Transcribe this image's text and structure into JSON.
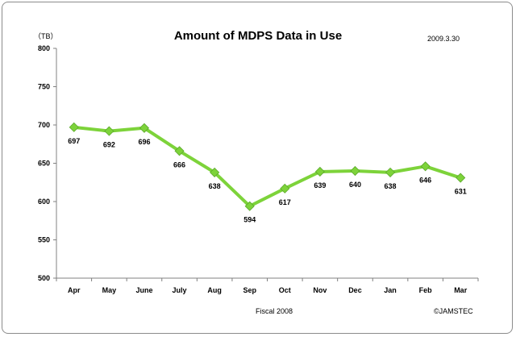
{
  "chart_data": {
    "type": "line",
    "title": "Amount of MDPS Data in Use",
    "ylabel": "（TB）",
    "xlabel": "Fiscal 2008",
    "date_note": "2009.3.30",
    "credit": "©JAMSTEC",
    "categories": [
      "Apr",
      "May",
      "June",
      "July",
      "Aug",
      "Sep",
      "Oct",
      "Nov",
      "Dec",
      "Jan",
      "Feb",
      "Mar"
    ],
    "series": [
      {
        "values": [
          697,
          692,
          696,
          666,
          638,
          594,
          617,
          639,
          640,
          638,
          646,
          631
        ],
        "color": "#7dd33a",
        "marker_color": "#7dd33a"
      }
    ],
    "ylim": [
      500,
      800
    ],
    "yticks": [
      500,
      550,
      600,
      650,
      700,
      750,
      800
    ],
    "grid": false,
    "legend": "none",
    "data_labels": true
  }
}
